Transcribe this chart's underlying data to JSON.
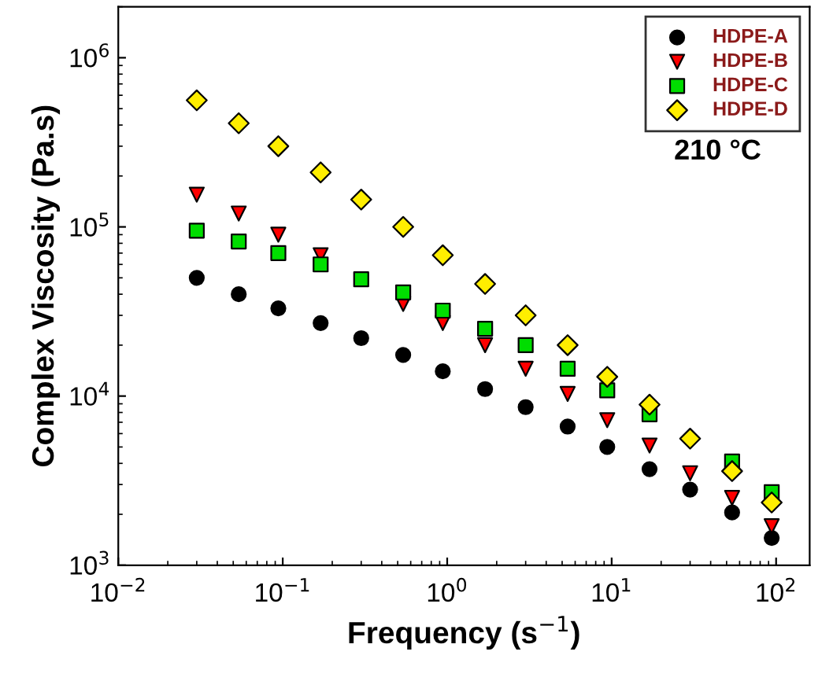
{
  "chart_data": {
    "type": "scatter",
    "xlabel": "Frequency (s$^{−1}$)",
    "ylabel": "Complex Viscosity (Pa.s)",
    "x": [
      0.03,
      0.054,
      0.094,
      0.17,
      0.3,
      0.54,
      0.94,
      1.7,
      3,
      5.4,
      9.4,
      17,
      30,
      54,
      94
    ],
    "series": [
      {
        "name": "HDPE-A",
        "color": "#000000",
        "marker": "circle",
        "values": [
          50000,
          40000,
          33000,
          27000,
          22000,
          17500,
          14000,
          11000,
          8600,
          6600,
          5000,
          3700,
          2800,
          2050,
          1450
        ]
      },
      {
        "name": "HDPE-B",
        "color": "#ff0000",
        "marker": "triangle",
        "values": [
          155000,
          120000,
          90000,
          68000,
          null,
          35000,
          27000,
          20000,
          14500,
          10300,
          7200,
          5100,
          3500,
          2500,
          1700
        ]
      },
      {
        "name": "HDPE-C",
        "color": "#00dd00",
        "marker": "square",
        "values": [
          95000,
          82000,
          70000,
          60000,
          49000,
          41000,
          32000,
          25000,
          20000,
          14500,
          10800,
          7800,
          null,
          4100,
          2700
        ]
      },
      {
        "name": "HDPE-D",
        "color": "#ffee00",
        "marker": "diamond",
        "values": [
          560000,
          410000,
          300000,
          210000,
          145000,
          100000,
          68000,
          46000,
          30000,
          20000,
          13000,
          8900,
          5600,
          3600,
          2350
        ]
      }
    ],
    "log": "xy",
    "xlim": [
      0.01,
      160
    ],
    "ylim": [
      1000,
      2000000
    ],
    "xticks": [
      {
        "value": 0.01,
        "label": "10$^{−2}$"
      },
      {
        "value": 0.1,
        "label": "10$^{−1}$"
      },
      {
        "value": 1,
        "label": "10$^{0}$"
      },
      {
        "value": 10,
        "label": "10$^{1}$"
      },
      {
        "value": 100,
        "label": "10$^{2}$"
      }
    ],
    "yticks": [
      {
        "value": 1000,
        "label": "10$^{3}$"
      },
      {
        "value": 10000,
        "label": "10$^{4}$"
      },
      {
        "value": 100000,
        "label": "10$^{5}$"
      },
      {
        "value": 1000000,
        "label": "10$^{6}$"
      }
    ],
    "annotations": [
      "210 °C"
    ],
    "legend": "top right",
    "grid": false
  }
}
